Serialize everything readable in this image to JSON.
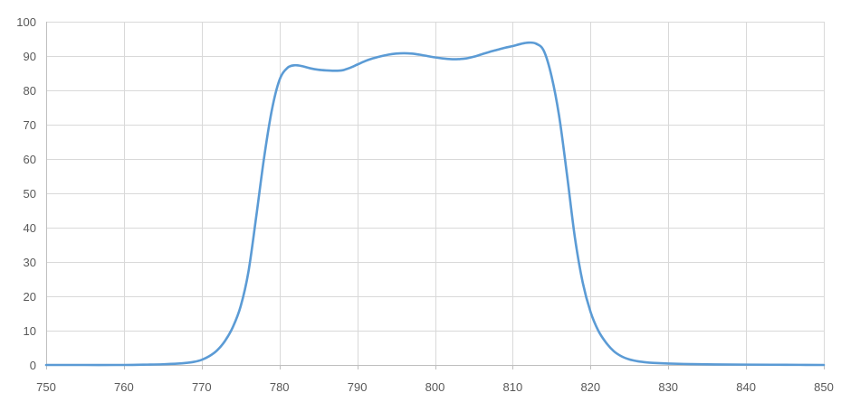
{
  "chart_data": {
    "type": "line",
    "title": "",
    "xlabel": "",
    "ylabel": "",
    "xlim": [
      750,
      850
    ],
    "ylim": [
      0,
      100
    ],
    "x_ticks": [
      "750",
      "760",
      "770",
      "780",
      "790",
      "800",
      "810",
      "820",
      "830",
      "840",
      "850"
    ],
    "y_ticks": [
      "0",
      "10",
      "20",
      "30",
      "40",
      "50",
      "60",
      "70",
      "80",
      "90",
      "100"
    ],
    "grid": true,
    "legend": "none",
    "series": [
      {
        "color": "#5b9bd5",
        "x": [
          750,
          755,
          760,
          763,
          765,
          767,
          768,
          769,
          770,
          771,
          772,
          773,
          774,
          775,
          776,
          777,
          778,
          779,
          780,
          781,
          782,
          783,
          784,
          785,
          786,
          787,
          788,
          789,
          790,
          791,
          792,
          793,
          794,
          795,
          796,
          797,
          798,
          799,
          800,
          801,
          802,
          803,
          804,
          805,
          806,
          807,
          808,
          809,
          810,
          811,
          812,
          813,
          814,
          815,
          816,
          817,
          818,
          819,
          820,
          821,
          822,
          823,
          824,
          825,
          826,
          827,
          828,
          830,
          833,
          836,
          840,
          845,
          850
        ],
        "y": [
          0,
          0,
          0,
          0.1,
          0.2,
          0.4,
          0.6,
          0.9,
          1.5,
          2.6,
          4.3,
          7,
          11,
          17,
          27,
          43,
          60,
          74,
          83,
          86.5,
          87.3,
          87,
          86.4,
          86,
          85.8,
          85.7,
          85.8,
          86.5,
          87.5,
          88.5,
          89.3,
          89.9,
          90.4,
          90.7,
          90.8,
          90.7,
          90.4,
          90,
          89.6,
          89.3,
          89.1,
          89.1,
          89.3,
          89.8,
          90.5,
          91.2,
          91.8,
          92.4,
          92.9,
          93.5,
          93.9,
          93.6,
          91.5,
          84,
          72,
          55,
          37,
          24,
          15.5,
          10,
          6.5,
          4,
          2.5,
          1.6,
          1.1,
          0.8,
          0.6,
          0.4,
          0.25,
          0.15,
          0.1,
          0.05,
          0
        ]
      }
    ]
  }
}
